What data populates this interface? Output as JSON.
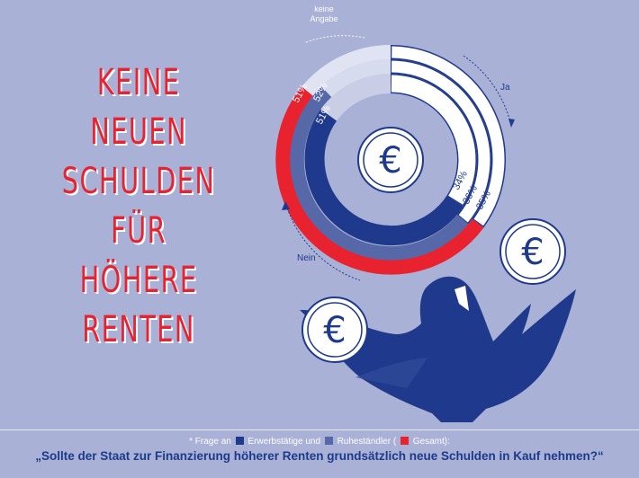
{
  "headline": [
    "KEINE",
    "NEUEN",
    "SCHULDEN",
    "FÜR",
    "HÖHERE",
    "RENTEN"
  ],
  "colors": {
    "background": "#a9b1d6",
    "erwerbstaetige": "#1f3a8c",
    "ruhestaendler": "#5668a8",
    "gesamt": "#e8232f",
    "headline_red": "#e8232f",
    "white": "#ffffff"
  },
  "chart_data": {
    "type": "donut-rings",
    "categories": [
      "Ja",
      "Nein",
      "keine Angabe"
    ],
    "series": [
      {
        "name": "Erwerbstätige",
        "values": [
          34,
          51,
          15
        ]
      },
      {
        "name": "Ruheständler",
        "values": [
          36,
          52,
          12
        ]
      },
      {
        "name": "Gesamt",
        "values": [
          35,
          51,
          14
        ]
      }
    ],
    "value_labels": {
      "ja": [
        "34",
        "36",
        "35"
      ],
      "nein": [
        "51",
        "52",
        "51"
      ],
      "percent_sign": "%"
    },
    "category_labels": {
      "ja": "Ja",
      "nein": "Nein",
      "keine_angabe": [
        "keine",
        "Angabe"
      ]
    }
  },
  "footer": {
    "note_prefix": "* Frage an",
    "note_erwerbstaetige": "Erwerbstätige und",
    "note_ruhestaendler": "Ruheständler (",
    "note_gesamt": "Gesamt):",
    "question": "„Sollte der Staat zur Finanzierung höherer Renten grundsätzlich neue Schulden in Kauf nehmen?“"
  },
  "icons": [
    "euro-coin-icon",
    "euro-coin-icon",
    "euro-coin-icon",
    "eagle-illustration"
  ]
}
